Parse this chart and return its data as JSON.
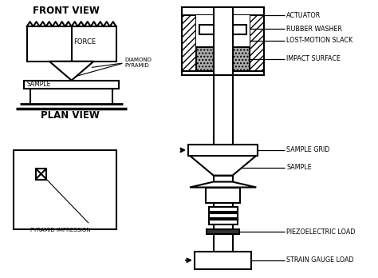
{
  "bg_color": "#ffffff",
  "line_color": "#000000",
  "title_front": "FRONT VIEW",
  "title_plan": "PLAN VIEW",
  "labels": {
    "force": "FORCE",
    "sample_fv": "SAMPLE",
    "diamond": "DIAMOND\nPYRAMID",
    "actuator": "ACTUATOR",
    "rubber_washer": "RUBBER WASHER",
    "lost_motion": "LOST-MOTION SLACK",
    "impact_surface": "IMPACT SURFACE",
    "sample_grid": "SAMPLE GRID",
    "sample_rhs": "SAMPLE",
    "piezoelectric": "PIEZOELECTRIC LOAD",
    "strain_gauge": "STRAIN GAUGE LOAD",
    "pyramid_impression": "PYRAMID IMPRESSION"
  }
}
